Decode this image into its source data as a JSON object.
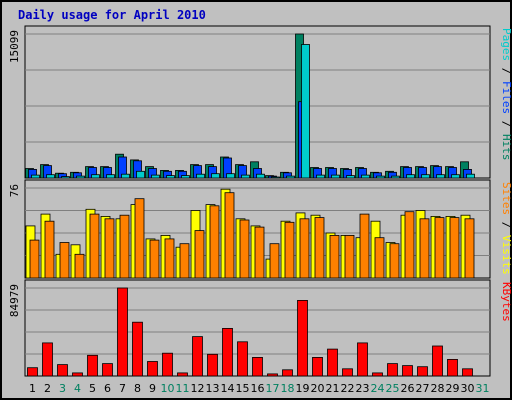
{
  "title": "Daily usage for April 2010",
  "colors": {
    "pages": "#00cccc",
    "files": "#0040ff",
    "hits": "#008060",
    "visits": "#ffff00",
    "sites": "#ff8000",
    "kbytes": "#ff0000",
    "weekend_day": "#008060",
    "weekday": "#000000"
  },
  "chart_data": {
    "type": "bar",
    "x": [
      "1",
      "2",
      "3",
      "4",
      "5",
      "6",
      "7",
      "8",
      "9",
      "10",
      "11",
      "12",
      "13",
      "14",
      "15",
      "16",
      "17",
      "18",
      "19",
      "20",
      "21",
      "22",
      "23",
      "24",
      "25",
      "26",
      "27",
      "28",
      "29",
      "30",
      "31"
    ],
    "weekend_days": [
      "3",
      "4",
      "10",
      "11",
      "17",
      "18",
      "24",
      "25",
      "31"
    ],
    "panels": [
      {
        "id": "hits",
        "max_label": "15099",
        "ymax": 15099,
        "legend": [
          {
            "text": "Pages",
            "color": "#00cccc"
          },
          {
            "text": " / ",
            "color": "#000000"
          },
          {
            "text": "Files",
            "color": "#0040ff"
          },
          {
            "text": " / ",
            "color": "#000000"
          },
          {
            "text": "Hits",
            "color": "#008060"
          }
        ],
        "series": [
          {
            "name": "Hits",
            "color": "#008060",
            "values": [
              1000,
              1400,
              500,
              600,
              1200,
              1200,
              2500,
              1900,
              1200,
              800,
              800,
              1400,
              1400,
              2200,
              1400,
              1700,
              250,
              600,
              15099,
              1100,
              1100,
              1000,
              1100,
              600,
              700,
              1200,
              1200,
              1300,
              1200,
              1700,
              null
            ]
          },
          {
            "name": "Files",
            "color": "#0040ff",
            "values": [
              900,
              1300,
              450,
              550,
              1100,
              1100,
              2200,
              1800,
              1000,
              700,
              700,
              1300,
              1200,
              2100,
              1300,
              1000,
              200,
              550,
              8000,
              1000,
              1000,
              900,
              1000,
              550,
              600,
              1100,
              1100,
              1200,
              1100,
              900,
              null
            ]
          },
          {
            "name": "Pages",
            "color": "#00cccc",
            "values": [
              300,
              350,
              150,
              200,
              350,
              350,
              400,
              700,
              300,
              250,
              250,
              400,
              450,
              450,
              300,
              400,
              100,
              200,
              14000,
              300,
              300,
              250,
              300,
              200,
              200,
              350,
              350,
              350,
              350,
              400,
              null
            ]
          }
        ]
      },
      {
        "id": "visits",
        "max_label": "76",
        "ymax": 76,
        "legend": [
          {
            "text": "Sites",
            "color": "#ff8000"
          },
          {
            "text": " / ",
            "color": "#000000"
          },
          {
            "text": "Visits",
            "color": "#ffff00"
          }
        ],
        "series": [
          {
            "name": "Visits",
            "color": "#ffff00",
            "values": [
              44,
              54,
              20,
              28,
              58,
              52,
              50,
              62,
              33,
              36,
              26,
              57,
              62,
              75,
              50,
              44,
              16,
              48,
              55,
              53,
              38,
              36,
              34,
              48,
              30,
              53,
              57,
              52,
              52,
              53,
              null
            ]
          },
          {
            "name": "Sites",
            "color": "#ff8000",
            "values": [
              32,
              48,
              30,
              20,
              54,
              50,
              53,
              67,
              32,
              33,
              29,
              40,
              61,
              72,
              49,
              43,
              29,
              47,
              50,
              51,
              36,
              36,
              54,
              34,
              29,
              56,
              50,
              51,
              51,
              50,
              null
            ]
          }
        ]
      },
      {
        "id": "kbytes",
        "max_label": "84979",
        "ymax": 84979,
        "legend": [
          {
            "text": "KBytes",
            "color": "#ff0000"
          }
        ],
        "series": [
          {
            "name": "KBytes",
            "color": "#ff0000",
            "values": [
              8000,
              32000,
              11000,
              3000,
              20000,
              12000,
              84979,
              52000,
              14000,
              22000,
              3000,
              38000,
              21000,
              46000,
              33000,
              18000,
              2000,
              6000,
              73000,
              18000,
              26000,
              7000,
              32000,
              3000,
              12000,
              10000,
              9000,
              29000,
              16000,
              7000,
              null
            ]
          }
        ]
      }
    ]
  }
}
